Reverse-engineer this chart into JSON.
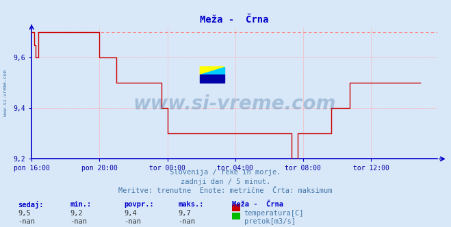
{
  "title": "Meža -  Črna",
  "background_color": "#d8e8f8",
  "plot_bg_color": "#d8e8f8",
  "line_color": "#cc0000",
  "dashed_line_color": "#ff8888",
  "axis_color": "#0000cc",
  "grid_color": "#ffaaaa",
  "text_color": "#4477aa",
  "label_color": "#0000aa",
  "ylim": [
    9.2,
    9.72
  ],
  "yticks": [
    9.2,
    9.4,
    9.6
  ],
  "xlim": [
    0,
    287
  ],
  "xtick_labels": [
    "pon 16:00",
    "pon 20:00",
    "tor 00:00",
    "tor 04:00",
    "tor 08:00",
    "tor 12:00"
  ],
  "xtick_positions": [
    0,
    48,
    96,
    144,
    192,
    240
  ],
  "subtitle1": "Slovenija / reke in morje.",
  "subtitle2": "zadnji dan / 5 minut.",
  "subtitle3": "Meritve: trenutne  Enote: metrične  Črta: maksimum",
  "footer_headers": [
    "sedaj:",
    "min.:",
    "povpr.:",
    "maks.:"
  ],
  "footer_values_temp": [
    "9,5",
    "9,2",
    "9,4",
    "9,7"
  ],
  "footer_values_flow": [
    "-nan",
    "-nan",
    "-nan",
    "-nan"
  ],
  "legend_label1": "temperatura[C]",
  "legend_label2": "pretok[m3/s]",
  "legend_color1": "#cc0000",
  "legend_color2": "#00bb00",
  "legend_title": "Meža -  Črna",
  "max_line_value": 9.7,
  "watermark": "www.si-vreme.com",
  "temperature_data": [
    9.7,
    9.7,
    9.65,
    9.6,
    9.6,
    9.7,
    9.7,
    9.7,
    9.7,
    9.7,
    9.7,
    9.7,
    9.7,
    9.7,
    9.7,
    9.7,
    9.7,
    9.7,
    9.7,
    9.7,
    9.7,
    9.7,
    9.7,
    9.7,
    9.7,
    9.7,
    9.7,
    9.7,
    9.7,
    9.7,
    9.7,
    9.7,
    9.7,
    9.7,
    9.7,
    9.7,
    9.7,
    9.7,
    9.7,
    9.7,
    9.7,
    9.7,
    9.7,
    9.7,
    9.7,
    9.7,
    9.7,
    9.7,
    9.6,
    9.6,
    9.6,
    9.6,
    9.6,
    9.6,
    9.6,
    9.6,
    9.6,
    9.6,
    9.6,
    9.6,
    9.5,
    9.5,
    9.5,
    9.5,
    9.5,
    9.5,
    9.5,
    9.5,
    9.5,
    9.5,
    9.5,
    9.5,
    9.5,
    9.5,
    9.5,
    9.5,
    9.5,
    9.5,
    9.5,
    9.5,
    9.5,
    9.5,
    9.5,
    9.5,
    9.5,
    9.5,
    9.5,
    9.5,
    9.5,
    9.5,
    9.5,
    9.5,
    9.4,
    9.4,
    9.4,
    9.4,
    9.3,
    9.3,
    9.3,
    9.3,
    9.3,
    9.3,
    9.3,
    9.3,
    9.3,
    9.3,
    9.3,
    9.3,
    9.3,
    9.3,
    9.3,
    9.3,
    9.3,
    9.3,
    9.3,
    9.3,
    9.3,
    9.3,
    9.3,
    9.3,
    9.3,
    9.3,
    9.3,
    9.3,
    9.3,
    9.3,
    9.3,
    9.3,
    9.3,
    9.3,
    9.3,
    9.3,
    9.3,
    9.3,
    9.3,
    9.3,
    9.3,
    9.3,
    9.3,
    9.3,
    9.3,
    9.3,
    9.3,
    9.3,
    9.3,
    9.3,
    9.3,
    9.3,
    9.3,
    9.3,
    9.3,
    9.3,
    9.3,
    9.3,
    9.3,
    9.3,
    9.3,
    9.3,
    9.3,
    9.3,
    9.3,
    9.3,
    9.3,
    9.3,
    9.3,
    9.3,
    9.3,
    9.3,
    9.3,
    9.3,
    9.3,
    9.3,
    9.3,
    9.3,
    9.3,
    9.3,
    9.3,
    9.3,
    9.3,
    9.3,
    9.3,
    9.3,
    9.3,
    9.3,
    9.2,
    9.2,
    9.2,
    9.2,
    9.3,
    9.3,
    9.3,
    9.3,
    9.3,
    9.3,
    9.3,
    9.3,
    9.3,
    9.3,
    9.3,
    9.3,
    9.3,
    9.3,
    9.3,
    9.3,
    9.3,
    9.3,
    9.3,
    9.3,
    9.3,
    9.3,
    9.3,
    9.3,
    9.4,
    9.4,
    9.4,
    9.4,
    9.4,
    9.4,
    9.4,
    9.4,
    9.4,
    9.4,
    9.4,
    9.4,
    9.4,
    9.5,
    9.5,
    9.5,
    9.5,
    9.5,
    9.5,
    9.5,
    9.5,
    9.5,
    9.5,
    9.5,
    9.5,
    9.5,
    9.5,
    9.5,
    9.5,
    9.5,
    9.5,
    9.5,
    9.5,
    9.5,
    9.5,
    9.5,
    9.5,
    9.5,
    9.5,
    9.5,
    9.5,
    9.5,
    9.5,
    9.5,
    9.5,
    9.5,
    9.5,
    9.5,
    9.5,
    9.5,
    9.5,
    9.5,
    9.5,
    9.5,
    9.5,
    9.5,
    9.5,
    9.5,
    9.5,
    9.5,
    9.5,
    9.5,
    9.5,
    9.5
  ]
}
